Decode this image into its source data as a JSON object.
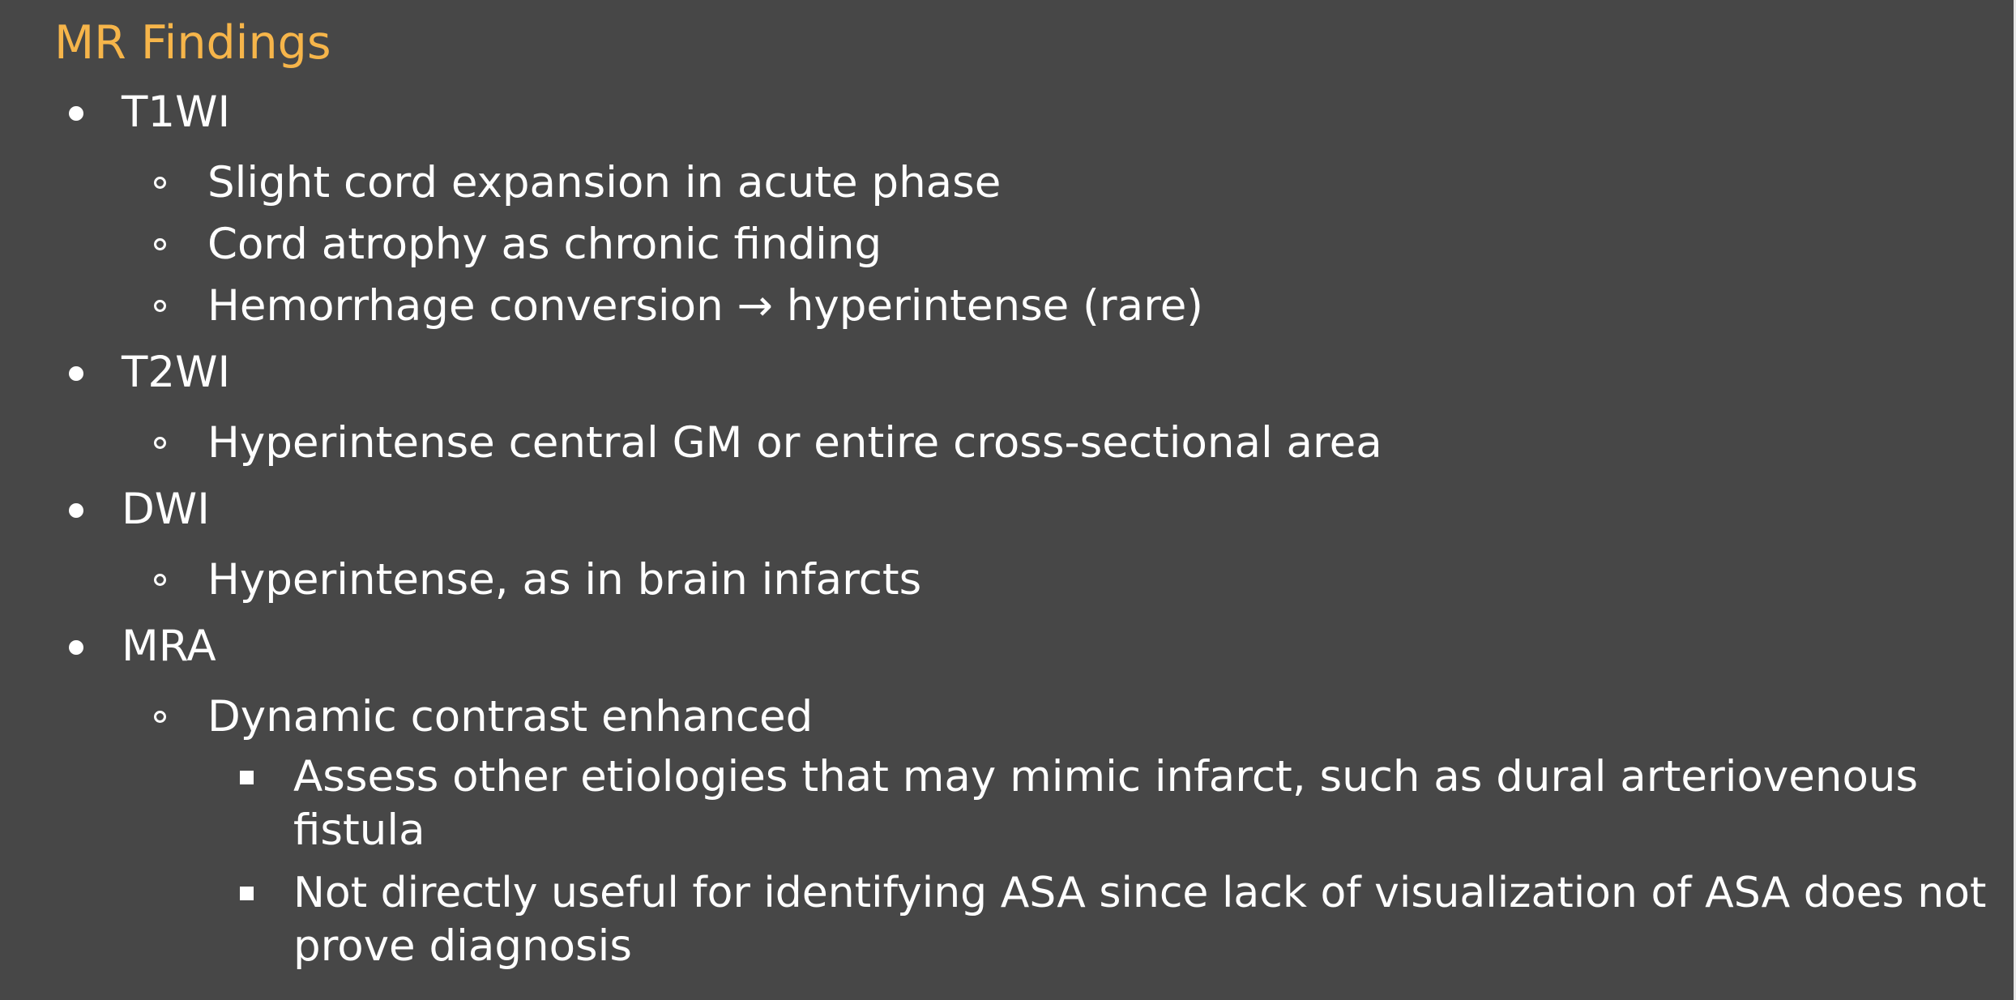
{
  "slide": {
    "title": "MR Findings",
    "items": [
      {
        "label": "T1WI",
        "subitems": [
          "Slight cord expansion in acute phase",
          "Cord atrophy as chronic finding",
          "Hemorrhage conversion → hyperintense (rare)"
        ]
      },
      {
        "label": "T2WI",
        "subitems": [
          "Hyperintense central GM or entire cross-sectional area"
        ]
      },
      {
        "label": "DWI",
        "subitems": [
          "Hyperintense, as in brain infarcts"
        ]
      },
      {
        "label": "MRA",
        "subitems": [
          "Dynamic contrast enhanced"
        ],
        "details": [
          {
            "line1": "Assess other etiologies that may mimic infarct, such as dural arteriovenous",
            "line2": "fistula"
          },
          {
            "line1": "Not directly useful for identifying ASA since lack of visualization of ASA does not",
            "line2": "prove diagnosis"
          }
        ]
      }
    ]
  },
  "colors": {
    "background": "#474747",
    "title": "#f6b54a",
    "text": "#ffffff"
  }
}
